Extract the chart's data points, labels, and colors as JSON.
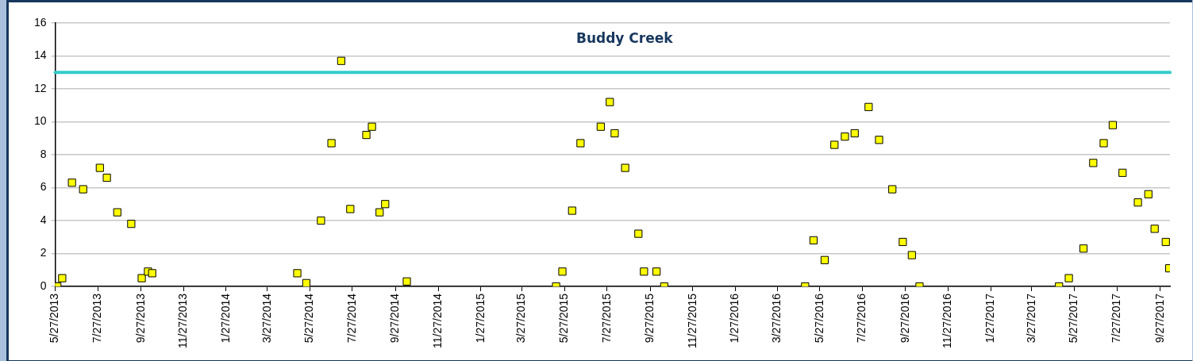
{
  "chart_data": {
    "type": "scatter",
    "title": "Buddy Creek",
    "x": [
      "2013-05-27",
      "2013-05-30",
      "2013-06-06",
      "2013-06-20",
      "2013-07-06",
      "2013-07-30",
      "2013-08-09",
      "2013-08-24",
      "2013-09-13",
      "2013-09-28",
      "2013-10-07",
      "2013-10-13",
      "2014-05-09",
      "2014-05-22",
      "2014-06-12",
      "2014-06-27",
      "2014-07-11",
      "2014-07-24",
      "2014-08-16",
      "2014-08-24",
      "2014-09-04",
      "2014-09-12",
      "2014-10-13",
      "2015-05-15",
      "2015-05-24",
      "2015-06-07",
      "2015-06-19",
      "2015-07-18",
      "2015-07-31",
      "2015-08-07",
      "2015-08-22",
      "2015-09-10",
      "2015-09-18",
      "2015-10-06",
      "2015-10-17",
      "2016-05-06",
      "2016-05-18",
      "2016-06-03",
      "2016-06-17",
      "2016-07-02",
      "2016-07-16",
      "2016-08-05",
      "2016-08-20",
      "2016-09-08",
      "2016-09-23",
      "2016-10-06",
      "2016-10-17",
      "2017-05-05",
      "2017-05-19",
      "2017-06-09",
      "2017-06-23",
      "2017-07-08",
      "2017-07-21",
      "2017-08-04",
      "2017-08-26",
      "2017-09-10",
      "2017-09-19",
      "2017-10-05",
      "2017-10-10"
    ],
    "series": [
      {
        "color": "#ffff00",
        "values": [
          0,
          0,
          0.5,
          6.3,
          5.9,
          7.2,
          6.6,
          4.5,
          3.8,
          0.5,
          0.9,
          0.8,
          0.8,
          0.2,
          4.0,
          8.7,
          13.7,
          4.7,
          9.2,
          9.7,
          4.5,
          5.0,
          0.3,
          0,
          0.9,
          4.6,
          8.7,
          9.7,
          11.2,
          9.3,
          7.2,
          3.2,
          0.9,
          0.9,
          0,
          0,
          2.8,
          1.6,
          8.6,
          9.1,
          9.3,
          10.9,
          8.9,
          5.9,
          2.7,
          1.9,
          0,
          0,
          0.5,
          2.3,
          7.5,
          8.7,
          9.8,
          6.9,
          5.1,
          5.6,
          3.5,
          2.7,
          1.1
        ]
      }
    ],
    "xlim": [
      "2013-05-27",
      "2017-10-11"
    ],
    "xticks": [
      {
        "value": "2013-05-27",
        "label": "5/27/2013"
      },
      {
        "value": "2013-07-27",
        "label": "7/27/2013"
      },
      {
        "value": "2013-09-27",
        "label": "9/27/2013"
      },
      {
        "value": "2013-11-27",
        "label": "11/27/2013"
      },
      {
        "value": "2014-01-27",
        "label": "1/27/2014"
      },
      {
        "value": "2014-03-27",
        "label": "3/27/2014"
      },
      {
        "value": "2014-05-27",
        "label": "5/27/2014"
      },
      {
        "value": "2014-07-27",
        "label": "7/27/2014"
      },
      {
        "value": "2014-09-27",
        "label": "9/27/2014"
      },
      {
        "value": "2014-11-27",
        "label": "11/27/2014"
      },
      {
        "value": "2015-01-27",
        "label": "1/27/2015"
      },
      {
        "value": "2015-03-27",
        "label": "3/27/2015"
      },
      {
        "value": "2015-05-27",
        "label": "5/27/2015"
      },
      {
        "value": "2015-07-27",
        "label": "7/27/2015"
      },
      {
        "value": "2015-09-27",
        "label": "9/27/2015"
      },
      {
        "value": "2015-11-27",
        "label": "11/27/2015"
      },
      {
        "value": "2016-01-27",
        "label": "1/27/2016"
      },
      {
        "value": "2016-03-27",
        "label": "3/27/2016"
      },
      {
        "value": "2016-05-27",
        "label": "5/27/2016"
      },
      {
        "value": "2016-07-27",
        "label": "7/27/2016"
      },
      {
        "value": "2016-09-27",
        "label": "9/27/2016"
      },
      {
        "value": "2016-11-27",
        "label": "11/27/2016"
      },
      {
        "value": "2017-01-27",
        "label": "1/27/2017"
      },
      {
        "value": "2017-03-27",
        "label": "3/27/2017"
      },
      {
        "value": "2017-05-27",
        "label": "5/27/2017"
      },
      {
        "value": "2017-07-27",
        "label": "7/27/2017"
      },
      {
        "value": "2017-09-27",
        "label": "9/27/2017"
      }
    ],
    "ylim": [
      0,
      16
    ],
    "yticks": [
      0,
      2,
      4,
      6,
      8,
      10,
      12,
      14,
      16
    ],
    "ref_lines": [
      {
        "axis": "y",
        "value": 13,
        "color": "#33cccc"
      }
    ],
    "grid": "y",
    "legend": false,
    "marker": "square"
  }
}
